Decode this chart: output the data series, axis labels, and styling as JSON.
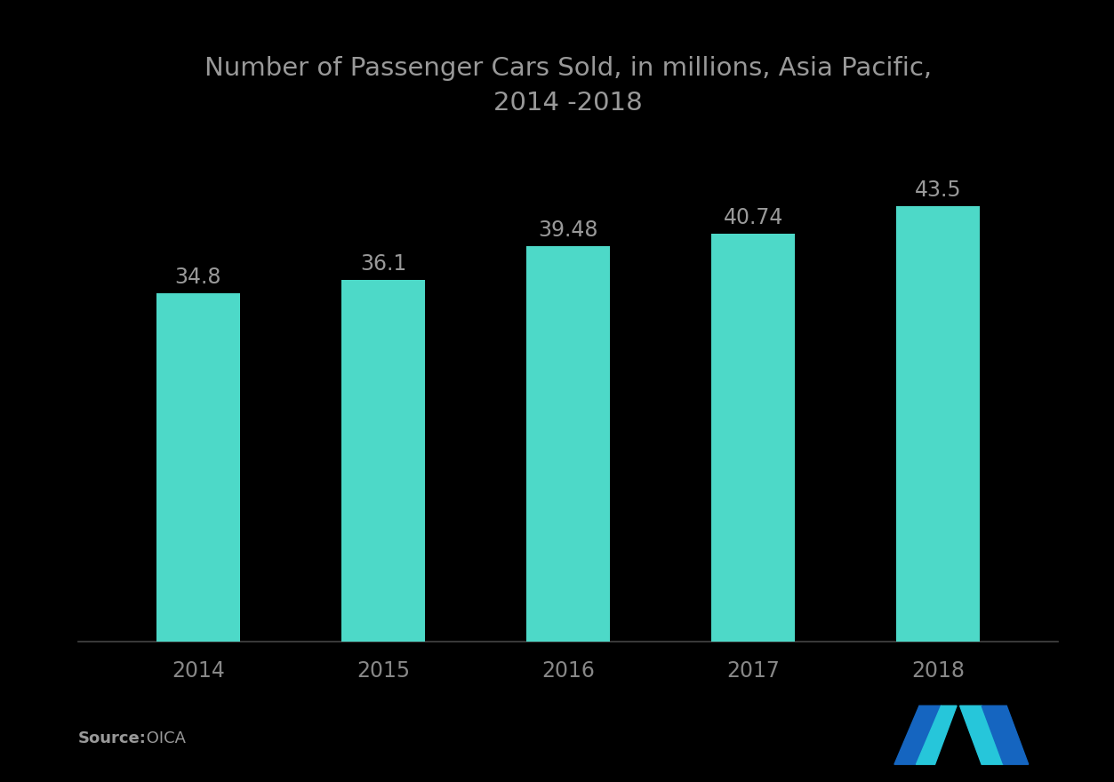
{
  "title_line1": "Number of Passenger Cars Sold, in millions, Asia Pacific,",
  "title_line2": "2014 -2018",
  "categories": [
    "2014",
    "2015",
    "2016",
    "2017",
    "2018"
  ],
  "values": [
    34.8,
    36.1,
    39.48,
    40.74,
    43.5
  ],
  "bar_color": "#4DD9C8",
  "background_color": "#000000",
  "text_color": "#999999",
  "title_color": "#999999",
  "label_color": "#888888",
  "source_bold": "Source:",
  "source_regular": " OICA",
  "ylim": [
    0,
    50
  ],
  "title_fontsize": 21,
  "tick_fontsize": 17,
  "value_fontsize": 17,
  "source_fontsize": 13,
  "bar_width": 0.45
}
